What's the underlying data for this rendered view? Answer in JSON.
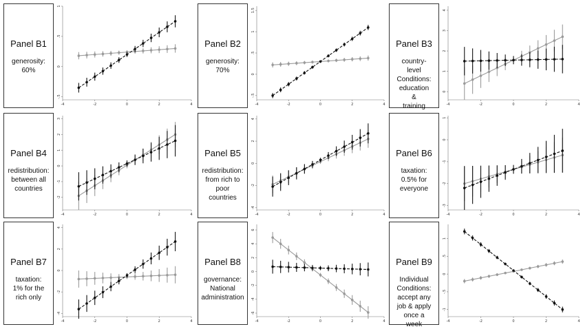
{
  "colors": {
    "dark": "#111111",
    "light": "#9a9a9a"
  },
  "panels": [
    {
      "title": "Panel B1",
      "desc": "generosity:\n60%",
      "chart_data": {
        "type": "line",
        "xlim": [
          -4,
          4
        ],
        "ylim": [
          -0.55,
          1.0
        ],
        "x_ticks": [
          "-4",
          "-2",
          "0",
          "2",
          "4"
        ],
        "y_ticks": [
          "-.5",
          "0",
          ".5",
          "1"
        ],
        "series": [
          {
            "style": "dark",
            "dashed": true,
            "y0": -0.35,
            "y1": 0.75,
            "ci": [
              0.08,
              0.04,
              0.1
            ]
          },
          {
            "style": "light",
            "dashed": false,
            "y0": 0.18,
            "y1": 0.3,
            "ci": [
              0.06,
              0.03,
              0.07
            ]
          }
        ]
      }
    },
    {
      "title": "Panel B2",
      "desc": "generosity:\n70%",
      "chart_data": {
        "type": "line",
        "xlim": [
          -4,
          4
        ],
        "ylim": [
          -0.6,
          1.6
        ],
        "x_ticks": [
          "-4",
          "-2",
          "0",
          "2",
          "4"
        ],
        "y_ticks": [
          "-.5",
          "0",
          ".5",
          "1",
          "1.5"
        ],
        "series": [
          {
            "style": "dark",
            "dashed": true,
            "y0": -0.5,
            "y1": 1.1,
            "ci": [
              0.06,
              0.03,
              0.06
            ]
          },
          {
            "style": "light",
            "dashed": false,
            "y0": 0.22,
            "y1": 0.38,
            "ci": [
              0.06,
              0.03,
              0.06
            ]
          }
        ]
      }
    },
    {
      "title": "Panel B3",
      "desc": "country-\nlevel\nConditions:\neducation\n&\ntraining",
      "chart_data": {
        "type": "line",
        "xlim": [
          -4,
          4
        ],
        "ylim": [
          -0.4,
          4.2
        ],
        "x_ticks": [
          "-4",
          "-2",
          "0",
          "2",
          "4"
        ],
        "y_ticks": [
          "0",
          "1",
          "2",
          "3",
          "4"
        ],
        "series": [
          {
            "style": "dark",
            "dashed": true,
            "y0": 1.5,
            "y1": 1.6,
            "ci": [
              0.7,
              0.2,
              0.7
            ]
          },
          {
            "style": "light",
            "dashed": false,
            "y0": 0.4,
            "y1": 2.7,
            "ci": [
              0.8,
              0.2,
              0.6
            ]
          }
        ]
      }
    },
    {
      "title": "Panel B4",
      "desc": "redistribution:\nbetween all\ncountries",
      "chart_data": {
        "type": "line",
        "xlim": [
          -4,
          4
        ],
        "ylim": [
          -2.8,
          3.2
        ],
        "x_ticks": [
          "-4",
          "-2",
          "0",
          "2",
          "4"
        ],
        "y_ticks": [
          "-2",
          "-1",
          "0",
          "1",
          "2",
          "3"
        ],
        "series": [
          {
            "style": "dark",
            "dashed": true,
            "y0": -1.3,
            "y1": 1.6,
            "ci": [
              0.9,
              0.2,
              1.0
            ]
          },
          {
            "style": "light",
            "dashed": false,
            "y0": -1.9,
            "y1": 2.0,
            "ci": [
              0.9,
              0.2,
              0.8
            ]
          }
        ]
      }
    },
    {
      "title": "Panel B5",
      "desc": "redistribution:\nfrom rich to\npoor countries",
      "chart_data": {
        "type": "line",
        "xlim": [
          -4,
          4
        ],
        "ylim": [
          -4.2,
          4.3
        ],
        "x_ticks": [
          "-4",
          "-2",
          "0",
          "2",
          "4"
        ],
        "y_ticks": [
          "-4",
          "-2",
          "0",
          "2",
          "4"
        ],
        "series": [
          {
            "style": "dark",
            "dashed": true,
            "y0": -2.1,
            "y1": 2.7,
            "ci": [
              0.9,
              0.2,
              0.9
            ]
          },
          {
            "style": "light",
            "dashed": false,
            "y0": -1.9,
            "y1": 2.2,
            "ci": [
              0.8,
              0.2,
              0.8
            ]
          }
        ]
      }
    },
    {
      "title": "Panel B6",
      "desc": "taxation:\n0.5% for\neveryone",
      "chart_data": {
        "type": "line",
        "xlim": [
          -4,
          4
        ],
        "ylim": [
          -3.2,
          1.1
        ],
        "x_ticks": [
          "-4",
          "-2",
          "0",
          "2",
          "4"
        ],
        "y_ticks": [
          "-3",
          "-2",
          "-1",
          "0",
          "1"
        ],
        "series": [
          {
            "style": "dark",
            "dashed": true,
            "y0": -2.2,
            "y1": -0.5,
            "ci": [
              1.0,
              0.2,
              1.0
            ]
          },
          {
            "style": "light",
            "dashed": false,
            "y0": -2.0,
            "y1": -0.7,
            "ci": [
              0.8,
              0.2,
              0.8
            ]
          }
        ]
      }
    },
    {
      "title": "Panel B7",
      "desc": "taxation:\n1% for the\nrich only",
      "chart_data": {
        "type": "line",
        "xlim": [
          -4,
          4
        ],
        "ylim": [
          -4.3,
          4.3
        ],
        "x_ticks": [
          "-4",
          "-2",
          "0",
          "2",
          "4"
        ],
        "y_ticks": [
          "-4",
          "-2",
          "0",
          "2",
          "4"
        ],
        "series": [
          {
            "style": "dark",
            "dashed": true,
            "y0": -3.6,
            "y1": 2.7,
            "ci": [
              0.9,
              0.2,
              0.9
            ]
          },
          {
            "style": "light",
            "dashed": false,
            "y0": -0.8,
            "y1": -0.4,
            "ci": [
              0.8,
              0.2,
              0.8
            ]
          }
        ]
      }
    },
    {
      "title": "Panel B8",
      "desc": "governance:\nNational\nadministration",
      "chart_data": {
        "type": "line",
        "xlim": [
          -4,
          4
        ],
        "ylim": [
          -6.5,
          6.8
        ],
        "x_ticks": [
          "-4",
          "-2",
          "0",
          "2",
          "4"
        ],
        "y_ticks": [
          "-6",
          "-4",
          "-2",
          "0",
          "2",
          "4",
          "6"
        ],
        "series": [
          {
            "style": "dark",
            "dashed": true,
            "y0": 0.7,
            "y1": 0.3,
            "ci": [
              1.0,
              0.3,
              1.0
            ]
          },
          {
            "style": "light",
            "dashed": false,
            "y0": 4.9,
            "y1": -5.9,
            "ci": [
              0.8,
              0.3,
              0.9
            ]
          }
        ]
      }
    },
    {
      "title": "Panel B9",
      "desc": "Individual\nConditions:\naccept any\njob & apply\nonce a\nweek",
      "chart_data": {
        "type": "line",
        "xlim": [
          -4,
          4
        ],
        "ylim": [
          -1.2,
          1.4
        ],
        "x_ticks": [
          "-4",
          "-2",
          "0",
          "2",
          "4"
        ],
        "y_ticks": [
          "-1",
          "-.5",
          "0",
          ".5",
          "1"
        ],
        "series": [
          {
            "style": "dark",
            "dashed": true,
            "y0": 1.2,
            "y1": -1.0,
            "ci": [
              0.08,
              0.03,
              0.08
            ]
          },
          {
            "style": "light",
            "dashed": false,
            "y0": -0.2,
            "y1": 0.35,
            "ci": [
              0.06,
              0.03,
              0.06
            ]
          }
        ]
      }
    }
  ]
}
